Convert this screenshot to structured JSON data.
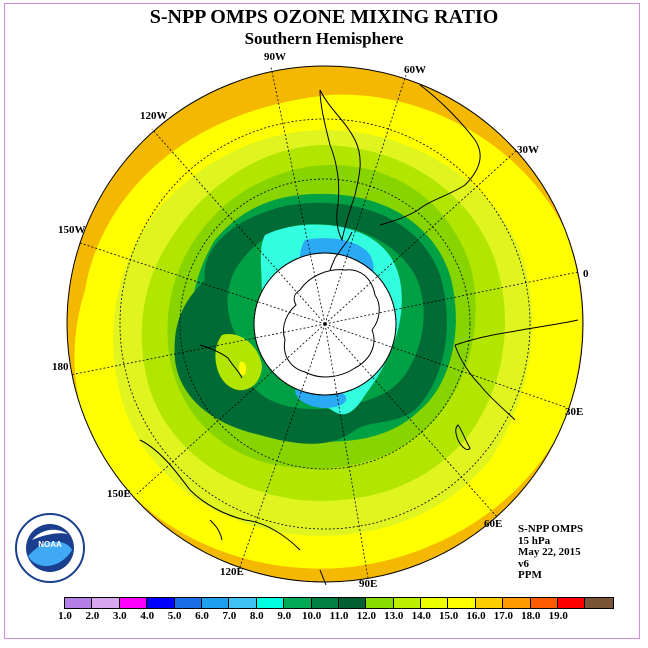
{
  "title": "S-NPP OMPS OZONE MIXING RATIO",
  "subtitle": "Southern Hemisphere",
  "longitude_labels": {
    "lon_90w": "90W",
    "lon_60w": "60W",
    "lon_120w": "120W",
    "lon_30w": "30W",
    "lon_150w": "150W",
    "lon_0": "0",
    "lon_180": "180",
    "lon_30e": "30E",
    "lon_150e": "150E",
    "lon_60e": "60E",
    "lon_120e": "120E",
    "lon_90e": "90E"
  },
  "info": {
    "instrument": "S-NPP OMPS",
    "level": "15 hPa",
    "date": "May 22, 2015",
    "version": "v6",
    "units": "PPM"
  },
  "colorbar": {
    "labels": [
      "1.0",
      "2.0",
      "3.0",
      "4.0",
      "5.0",
      "6.0",
      "7.0",
      "8.0",
      "9.0",
      "10.0",
      "11.0",
      "12.0",
      "13.0",
      "14.0",
      "15.0",
      "16.0",
      "17.0",
      "18.0",
      "19.0"
    ],
    "colors": [
      "#b57fe8",
      "#d9a6f0",
      "#ff00ff",
      "#0000ff",
      "#1a6fe8",
      "#1fa0ee",
      "#3fc3f3",
      "#00ffe0",
      "#00aa55",
      "#008040",
      "#006030",
      "#88dd00",
      "#bbee00",
      "#eeff00",
      "#ffff00",
      "#ffcc00",
      "#ff9900",
      "#ff5a00",
      "#ff0000",
      "#7a5535"
    ]
  },
  "map_colors": {
    "orange": "#f5b800",
    "yellow": "#ffff00",
    "lime": "#e0f520",
    "light_green": "#b2e600",
    "green": "#88d400",
    "dark_green_1": "#00a045",
    "dark_green_2": "#006b35",
    "cyan": "#33ffe0",
    "blue": "#2aaaf5"
  },
  "logo": {
    "text": "NOAA"
  }
}
